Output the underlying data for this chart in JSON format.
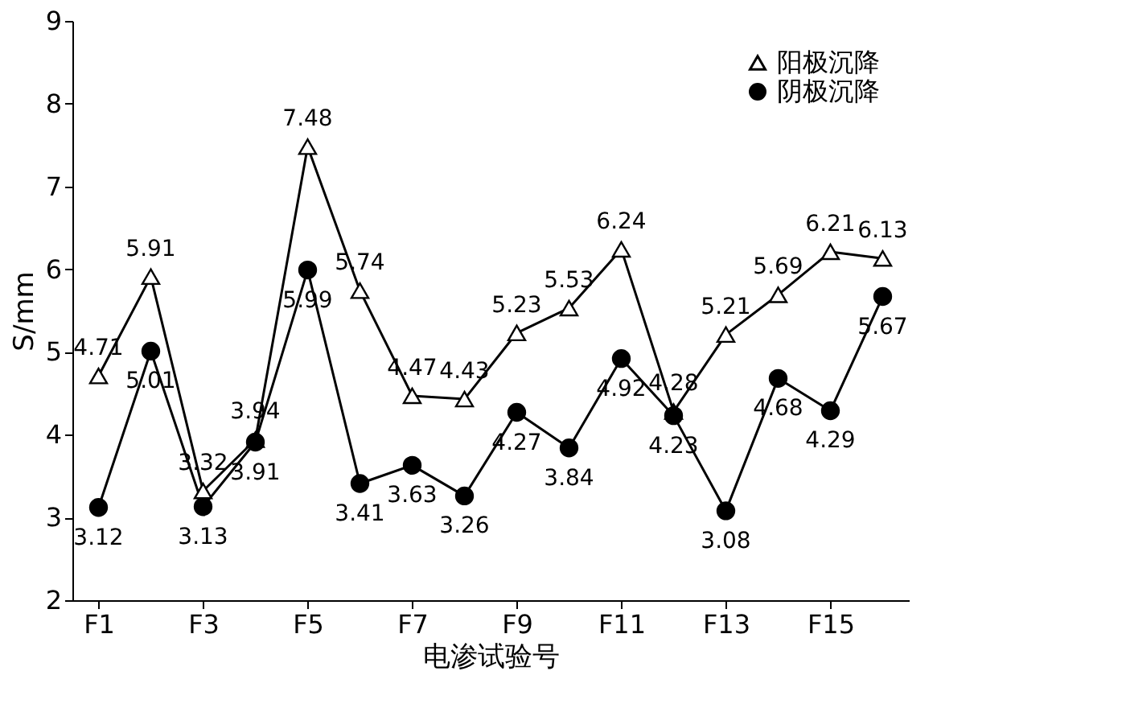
{
  "chart_data": {
    "type": "line",
    "xlabel": "电渗试验号",
    "ylabel": "S/mm",
    "categories": [
      "F1",
      null,
      "F3",
      null,
      "F5",
      null,
      "F7",
      null,
      "F9",
      null,
      "F11",
      null,
      "F13",
      null,
      "F15",
      null
    ],
    "series": [
      {
        "name": "阳极沉降",
        "color": "#000000",
        "marker": "triangle",
        "values": [
          4.71,
          5.91,
          3.32,
          3.94,
          7.48,
          5.74,
          4.47,
          4.43,
          5.23,
          5.53,
          6.24,
          4.28,
          5.21,
          5.69,
          6.21,
          6.13
        ]
      },
      {
        "name": "阴极沉降",
        "color": "#000000",
        "marker": "circle",
        "values": [
          3.12,
          5.01,
          3.13,
          3.91,
          5.99,
          3.41,
          3.63,
          3.26,
          4.27,
          3.84,
          4.92,
          4.23,
          3.08,
          4.68,
          4.29,
          5.67
        ]
      }
    ],
    "ylim": [
      2,
      9
    ],
    "yticks": [
      2,
      3,
      4,
      5,
      6,
      7,
      8,
      9
    ],
    "grid": false,
    "legend": "top right",
    "data_labels": true,
    "line_style": "solid"
  }
}
